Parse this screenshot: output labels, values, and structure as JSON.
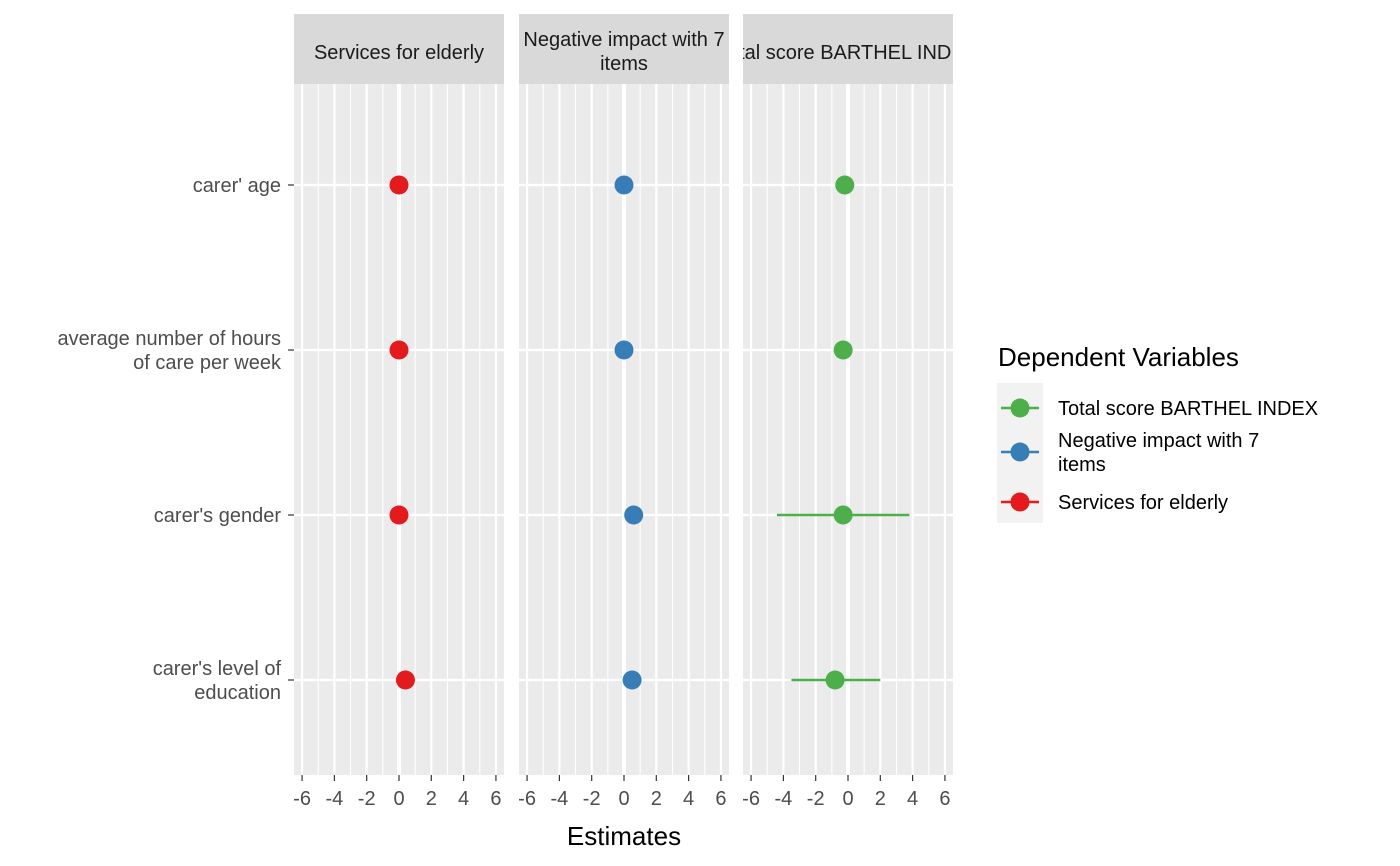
{
  "chart_data": {
    "type": "scatter",
    "title": "",
    "xlabel": "Estimates",
    "ylabel": "",
    "xlim": [
      -6.5,
      6.5
    ],
    "xticks": [
      -6,
      -4,
      -2,
      0,
      2,
      4,
      6
    ],
    "grid": true,
    "categories": [
      [
        "carer' age"
      ],
      [
        "average number of hours",
        "of care per week"
      ],
      [
        "carer's gender"
      ],
      [
        "carer's level of",
        "education"
      ]
    ],
    "panels": [
      {
        "strip_label": [
          "Services for elderly"
        ],
        "series": "Services for elderly",
        "estimates": [
          0.0,
          0.0,
          0.0,
          0.4
        ],
        "ci_low": [
          null,
          null,
          null,
          null
        ],
        "ci_high": [
          null,
          null,
          null,
          null
        ]
      },
      {
        "strip_label": [
          "Negative impact with 7",
          "items"
        ],
        "series": "Negative impact with 7 items",
        "estimates": [
          0.0,
          0.0,
          0.6,
          0.5
        ],
        "ci_low": [
          null,
          null,
          null,
          null
        ],
        "ci_high": [
          null,
          null,
          null,
          null
        ]
      },
      {
        "strip_label": [
          "Total score BARTHEL INDEX"
        ],
        "series": "Total score BARTHEL INDEX",
        "estimates": [
          -0.2,
          -0.3,
          -0.3,
          -0.8
        ],
        "ci_low": [
          null,
          null,
          -4.4,
          -3.5
        ],
        "ci_high": [
          null,
          null,
          3.8,
          2.0
        ]
      }
    ],
    "legend": {
      "title": "Dependent Variables",
      "position": "right",
      "entries": [
        {
          "label": [
            "Total score BARTHEL INDEX"
          ],
          "color": "#4DAF4A"
        },
        {
          "label": [
            "Negative impact with 7",
            "items"
          ],
          "color": "#377EB8"
        },
        {
          "label": [
            "Services for elderly"
          ],
          "color": "#E41A1C"
        }
      ]
    },
    "colors": {
      "Services for elderly": "#E41A1C",
      "Negative impact with 7 items": "#377EB8",
      "Total score BARTHEL INDEX": "#4DAF4A",
      "panel_background": "#EBEBEB",
      "strip_background": "#D9D9D9",
      "gridline": "#FFFFFF"
    }
  }
}
